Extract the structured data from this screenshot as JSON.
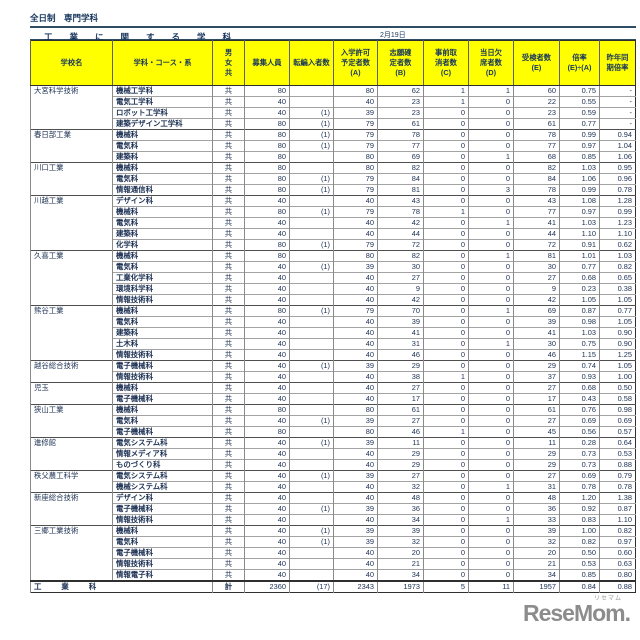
{
  "page_title": "全日制　専門学科",
  "section_title": "工業に関する学科",
  "date_label": "2月19日",
  "colors": {
    "header_bg": "#ffff00",
    "header_text": "#17365d",
    "school_text": "#35719e",
    "border_dark": "#2f2f2f",
    "logo_gray": "#8c8c8c"
  },
  "table": {
    "headers": {
      "school": "学校名",
      "course": "学科・コース・系",
      "gender": "男\n女\n共",
      "capacity": "募集人員",
      "transfer": "転編入者数",
      "a": "入学許可\n予定者数\n(A)",
      "b": "志願確\n定者数\n(B)",
      "c": "事前取\n消者数\n(C)",
      "d": "当日欠\n席者数\n(D)",
      "e": "受検者数\n(E)",
      "rate": "倍率\n(E)÷(A)",
      "prev": "昨年同\n期倍率"
    },
    "schools": [
      {
        "name": "大宮科学技術",
        "rows": [
          [
            "機械工学科",
            "共",
            "80",
            "",
            "80",
            "62",
            "1",
            "1",
            "60",
            "0.75",
            "-"
          ],
          [
            "電気工学科",
            "共",
            "40",
            "",
            "40",
            "23",
            "1",
            "0",
            "22",
            "0.55",
            "-"
          ],
          [
            "ロボット工学科",
            "共",
            "40",
            "(1)",
            "39",
            "23",
            "0",
            "0",
            "23",
            "0.59",
            "-"
          ],
          [
            "建築デザイン工学科",
            "共",
            "80",
            "(1)",
            "79",
            "61",
            "0",
            "0",
            "61",
            "0.77",
            "-"
          ]
        ]
      },
      {
        "name": "春日部工業",
        "rows": [
          [
            "機械科",
            "共",
            "80",
            "(1)",
            "79",
            "78",
            "0",
            "0",
            "78",
            "0.99",
            "0.94"
          ],
          [
            "電気科",
            "共",
            "80",
            "(1)",
            "79",
            "77",
            "0",
            "0",
            "77",
            "0.97",
            "1.04"
          ],
          [
            "建築科",
            "共",
            "80",
            "",
            "80",
            "69",
            "0",
            "1",
            "68",
            "0.85",
            "1.06"
          ]
        ]
      },
      {
        "name": "川口工業",
        "rows": [
          [
            "機械科",
            "共",
            "80",
            "",
            "80",
            "82",
            "0",
            "0",
            "82",
            "1.03",
            "0.95"
          ],
          [
            "電気科",
            "共",
            "80",
            "(1)",
            "79",
            "84",
            "0",
            "0",
            "84",
            "1.06",
            "0.96"
          ],
          [
            "情報通信科",
            "共",
            "80",
            "(1)",
            "79",
            "81",
            "0",
            "3",
            "78",
            "0.99",
            "0.78"
          ]
        ]
      },
      {
        "name": "川越工業",
        "rows": [
          [
            "デザイン科",
            "共",
            "40",
            "",
            "40",
            "43",
            "0",
            "0",
            "43",
            "1.08",
            "1.28"
          ],
          [
            "機械科",
            "共",
            "80",
            "(1)",
            "79",
            "78",
            "1",
            "0",
            "77",
            "0.97",
            "0.99"
          ],
          [
            "電気科",
            "共",
            "40",
            "",
            "40",
            "42",
            "0",
            "1",
            "41",
            "1.03",
            "1.23"
          ],
          [
            "建築科",
            "共",
            "40",
            "",
            "40",
            "44",
            "0",
            "0",
            "44",
            "1.10",
            "1.10"
          ],
          [
            "化学科",
            "共",
            "80",
            "(1)",
            "79",
            "72",
            "0",
            "0",
            "72",
            "0.91",
            "0.62"
          ]
        ]
      },
      {
        "name": "久喜工業",
        "rows": [
          [
            "機械科",
            "共",
            "80",
            "",
            "80",
            "82",
            "0",
            "1",
            "81",
            "1.01",
            "1.03"
          ],
          [
            "電気科",
            "共",
            "40",
            "(1)",
            "39",
            "30",
            "0",
            "0",
            "30",
            "0.77",
            "0.82"
          ],
          [
            "工業化学科",
            "共",
            "40",
            "",
            "40",
            "27",
            "0",
            "0",
            "27",
            "0.68",
            "0.65"
          ],
          [
            "環境科学科",
            "共",
            "40",
            "",
            "40",
            "9",
            "0",
            "0",
            "9",
            "0.23",
            "0.38"
          ],
          [
            "情報技術科",
            "共",
            "40",
            "",
            "40",
            "42",
            "0",
            "0",
            "42",
            "1.05",
            "1.05"
          ]
        ]
      },
      {
        "name": "熊谷工業",
        "rows": [
          [
            "機械科",
            "共",
            "80",
            "(1)",
            "79",
            "70",
            "0",
            "1",
            "69",
            "0.87",
            "0.77"
          ],
          [
            "電気科",
            "共",
            "40",
            "",
            "40",
            "39",
            "0",
            "0",
            "39",
            "0.98",
            "1.05"
          ],
          [
            "建築科",
            "共",
            "40",
            "",
            "40",
            "41",
            "0",
            "0",
            "41",
            "1.03",
            "0.90"
          ],
          [
            "土木科",
            "共",
            "40",
            "",
            "40",
            "31",
            "0",
            "1",
            "30",
            "0.75",
            "0.90"
          ],
          [
            "情報技術科",
            "共",
            "40",
            "",
            "40",
            "46",
            "0",
            "0",
            "46",
            "1.15",
            "1.25"
          ]
        ]
      },
      {
        "name": "越谷総合技術",
        "rows": [
          [
            "電子機械科",
            "共",
            "40",
            "(1)",
            "39",
            "29",
            "0",
            "0",
            "29",
            "0.74",
            "1.05"
          ],
          [
            "情報技術科",
            "共",
            "40",
            "",
            "40",
            "38",
            "1",
            "0",
            "37",
            "0.93",
            "1.00"
          ]
        ]
      },
      {
        "name": "児玉",
        "rows": [
          [
            "機械科",
            "共",
            "40",
            "",
            "40",
            "27",
            "0",
            "0",
            "27",
            "0.68",
            "0.50"
          ],
          [
            "電子機械科",
            "共",
            "40",
            "",
            "40",
            "17",
            "0",
            "0",
            "17",
            "0.43",
            "0.58"
          ]
        ]
      },
      {
        "name": "狭山工業",
        "rows": [
          [
            "機械科",
            "共",
            "80",
            "",
            "80",
            "61",
            "0",
            "0",
            "61",
            "0.76",
            "0.98"
          ],
          [
            "電気科",
            "共",
            "40",
            "(1)",
            "39",
            "27",
            "0",
            "0",
            "27",
            "0.69",
            "0.69"
          ],
          [
            "電子機械科",
            "共",
            "80",
            "",
            "80",
            "46",
            "1",
            "0",
            "45",
            "0.56",
            "0.57"
          ]
        ]
      },
      {
        "name": "進修館",
        "rows": [
          [
            "電気システム科",
            "共",
            "40",
            "(1)",
            "39",
            "11",
            "0",
            "0",
            "11",
            "0.28",
            "0.64"
          ],
          [
            "情報メディア科",
            "共",
            "40",
            "",
            "40",
            "29",
            "0",
            "0",
            "29",
            "0.73",
            "0.53"
          ],
          [
            "ものづくり科",
            "共",
            "40",
            "",
            "40",
            "29",
            "0",
            "0",
            "29",
            "0.73",
            "0.88"
          ]
        ]
      },
      {
        "name": "秩父農工科学",
        "rows": [
          [
            "電気システム科",
            "共",
            "40",
            "(1)",
            "39",
            "27",
            "0",
            "0",
            "27",
            "0.69",
            "0.79"
          ],
          [
            "機械システム科",
            "共",
            "40",
            "",
            "40",
            "32",
            "0",
            "1",
            "31",
            "0.78",
            "0.78"
          ]
        ]
      },
      {
        "name": "新座総合技術",
        "rows": [
          [
            "デザイン科",
            "共",
            "40",
            "",
            "40",
            "48",
            "0",
            "0",
            "48",
            "1.20",
            "1.38"
          ],
          [
            "電子機械科",
            "共",
            "40",
            "(1)",
            "39",
            "36",
            "0",
            "0",
            "36",
            "0.92",
            "0.87"
          ],
          [
            "情報技術科",
            "共",
            "40",
            "",
            "40",
            "34",
            "0",
            "1",
            "33",
            "0.83",
            "1.10"
          ]
        ]
      },
      {
        "name": "三郷工業技術",
        "rows": [
          [
            "機械科",
            "共",
            "40",
            "(1)",
            "39",
            "39",
            "0",
            "0",
            "39",
            "1.00",
            "0.82"
          ],
          [
            "電気科",
            "共",
            "40",
            "(1)",
            "39",
            "32",
            "0",
            "0",
            "32",
            "0.82",
            "0.97"
          ],
          [
            "電子機械科",
            "共",
            "40",
            "",
            "40",
            "20",
            "0",
            "0",
            "20",
            "0.50",
            "0.60"
          ],
          [
            "情報技術科",
            "共",
            "40",
            "",
            "40",
            "21",
            "0",
            "0",
            "21",
            "0.53",
            "0.63"
          ],
          [
            "情報電子科",
            "共",
            "40",
            "",
            "40",
            "34",
            "0",
            "0",
            "34",
            "0.85",
            "0.80"
          ]
        ]
      }
    ],
    "total": {
      "label": "工業科",
      "gender": "計",
      "capacity": "2360",
      "transfer": "(17)",
      "a": "2343",
      "b": "1973",
      "c": "5",
      "d": "11",
      "e": "1957",
      "rate": "0.84",
      "prev": "0.88"
    }
  },
  "logo": {
    "ruby": "リセマム",
    "text": "ReseMom."
  }
}
